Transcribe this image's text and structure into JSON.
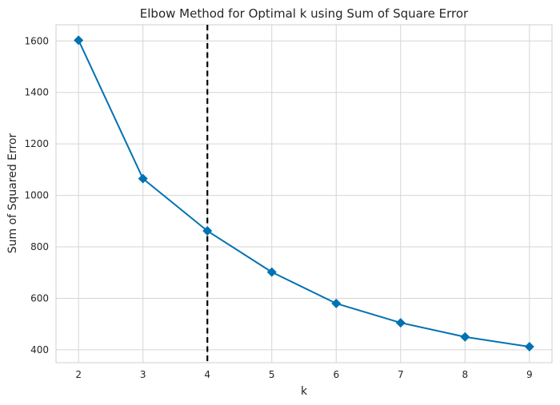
{
  "chart_data": {
    "type": "line",
    "title": "Elbow Method for Optimal k using Sum of Square Error",
    "xlabel": "k",
    "ylabel": "Sum of Squared Error",
    "x": [
      2,
      3,
      4,
      5,
      6,
      7,
      8,
      9
    ],
    "series": [
      {
        "values": [
          1603,
          1065,
          862,
          702,
          580,
          505,
          450,
          412
        ],
        "color": "#0072b2",
        "marker": "diamond"
      }
    ],
    "xticks": [
      2,
      3,
      4,
      5,
      6,
      7,
      8,
      9
    ],
    "yticks": [
      400,
      600,
      800,
      1000,
      1200,
      1400,
      1600
    ],
    "xlim": [
      1.65,
      9.35
    ],
    "ylim": [
      350,
      1663
    ],
    "grid": true,
    "reference_line": {
      "x": 4,
      "style": "dashed",
      "color": "#000000"
    }
  }
}
